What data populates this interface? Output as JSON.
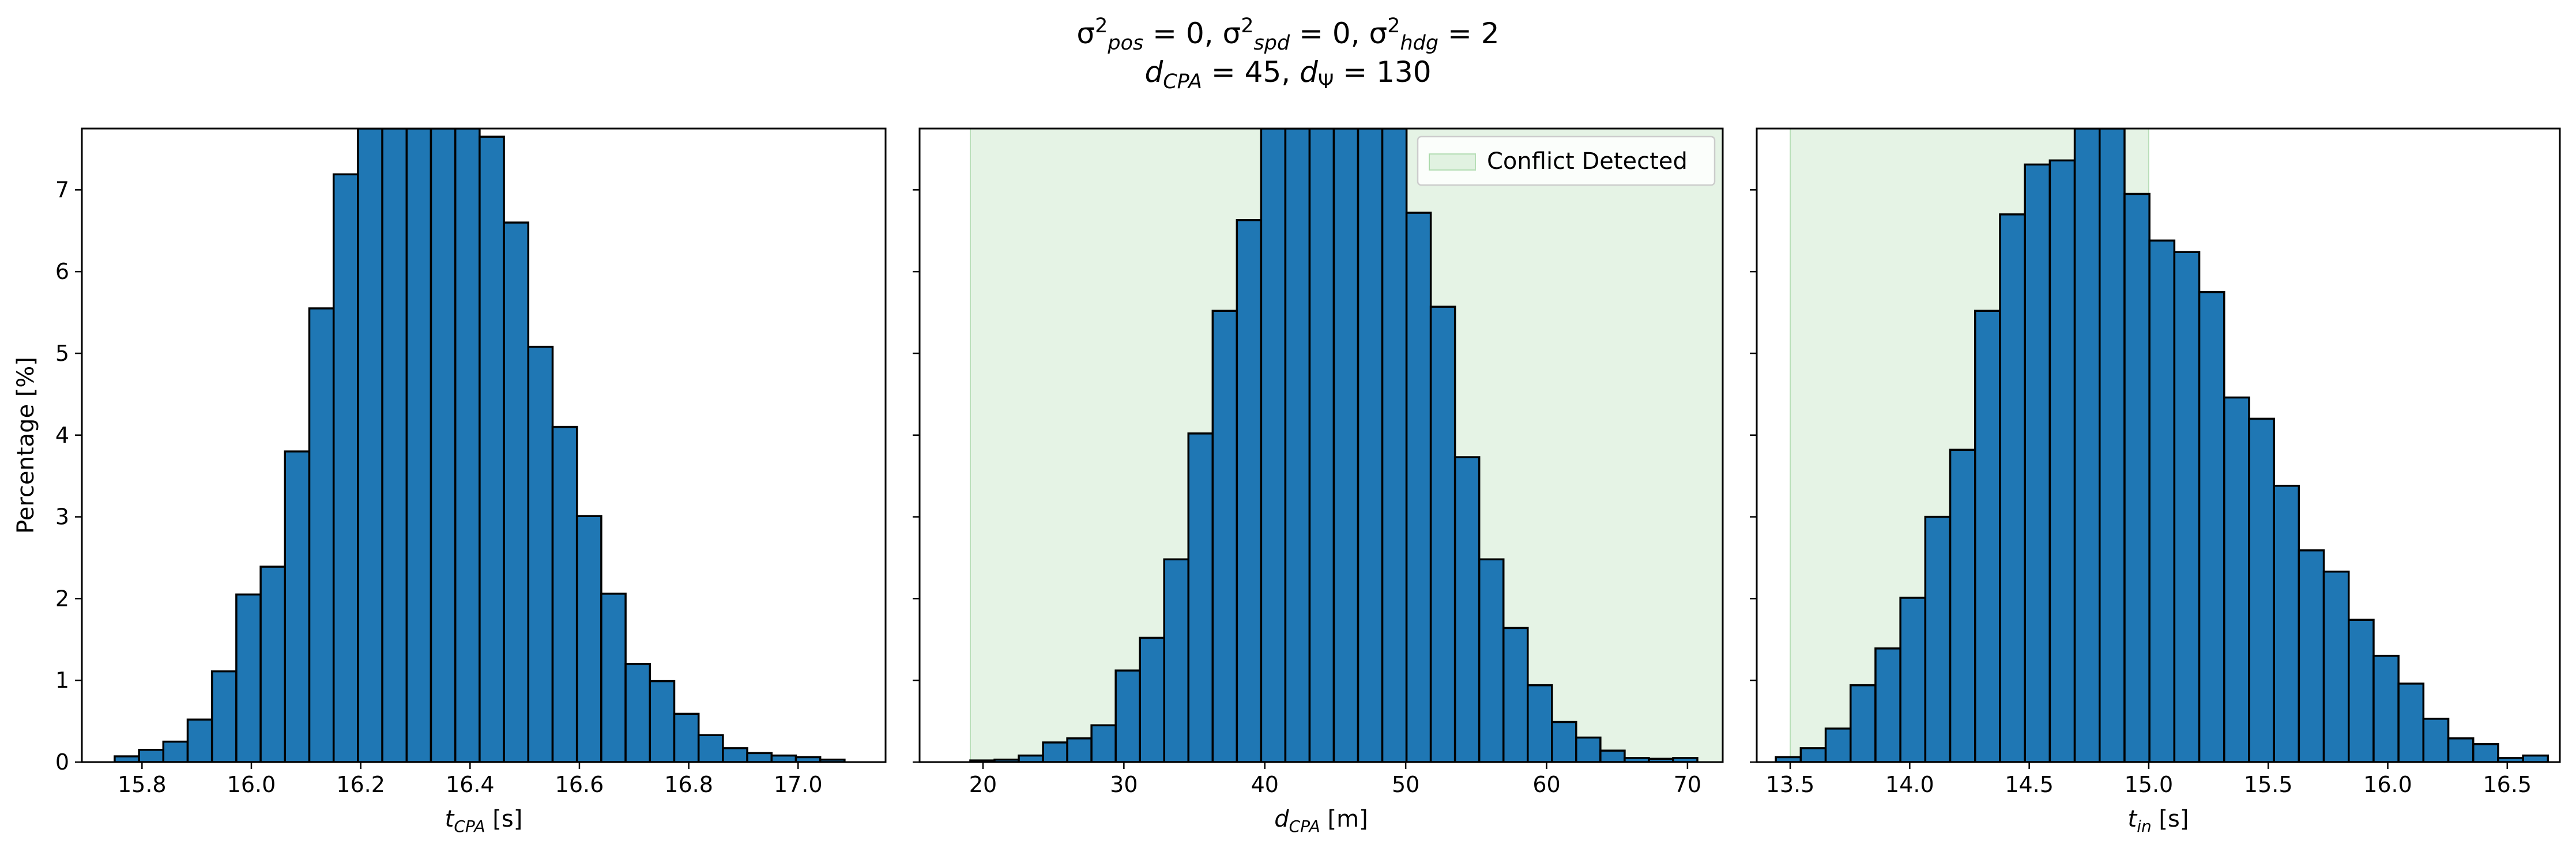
{
  "figure": {
    "title": {
      "line1": [
        {
          "t": "σ"
        },
        {
          "t": "2",
          "sup": true
        },
        {
          "t": "pos",
          "sub": true,
          "it": true
        },
        {
          "t": " = 0, "
        },
        {
          "t": "σ"
        },
        {
          "t": "2",
          "sup": true
        },
        {
          "t": "spd",
          "sub": true,
          "it": true
        },
        {
          "t": " = 0, "
        },
        {
          "t": "σ"
        },
        {
          "t": "2",
          "sup": true
        },
        {
          "t": "hdg",
          "sub": true,
          "it": true
        },
        {
          "t": " = 2"
        }
      ],
      "line2": [
        {
          "t": "d",
          "it": true
        },
        {
          "t": "CPA",
          "sub": true,
          "it": true
        },
        {
          "t": " = 45, "
        },
        {
          "t": "d",
          "it": true
        },
        {
          "t": "Ψ",
          "sub": true
        },
        {
          "t": " = 130"
        }
      ]
    }
  },
  "chart_data": [
    {
      "type": "bar",
      "subtype": "histogram",
      "id": "tcpa",
      "xlabel": [
        {
          "t": "t",
          "it": true
        },
        {
          "t": "CPA",
          "sub": true,
          "it": true
        },
        {
          "t": " [s]"
        }
      ],
      "ylabel": "Percentage [%]",
      "xlim": [
        15.69,
        17.16
      ],
      "ylim": [
        0,
        7.75
      ],
      "xticks": [
        15.8,
        16.0,
        16.2,
        16.4,
        16.6,
        16.8,
        17.0
      ],
      "xtick_labels": [
        "15.8",
        "16.0",
        "16.2",
        "16.4",
        "16.6",
        "16.8",
        "17.0"
      ],
      "yticks": [
        0,
        1,
        2,
        3,
        4,
        5,
        6,
        7
      ],
      "ytick_labels": [
        "0",
        "1",
        "2",
        "3",
        "4",
        "5",
        "6",
        "7"
      ],
      "show_ytick_labels": true,
      "bin_start": 15.75,
      "bin_width": 0.0445,
      "values": [
        0.07,
        0.15,
        0.25,
        0.52,
        1.11,
        2.05,
        2.39,
        3.8,
        5.55,
        7.19,
        7.75,
        7.75,
        7.75,
        7.75,
        7.75,
        7.65,
        6.6,
        5.08,
        4.1,
        3.01,
        2.06,
        1.2,
        0.99,
        0.59,
        0.33,
        0.17,
        0.11,
        0.08,
        0.06,
        0.03
      ]
    },
    {
      "type": "bar",
      "subtype": "histogram",
      "id": "dcpa",
      "xlabel": [
        {
          "t": "d",
          "it": true
        },
        {
          "t": "CPA",
          "sub": true,
          "it": true
        },
        {
          "t": " [m]"
        }
      ],
      "xlim": [
        15.5,
        72.5
      ],
      "ylim": [
        0,
        7.75
      ],
      "xticks": [
        20,
        30,
        40,
        50,
        60,
        70
      ],
      "xtick_labels": [
        "20",
        "30",
        "40",
        "50",
        "60",
        "70"
      ],
      "yticks": [
        0,
        1,
        2,
        3,
        4,
        5,
        6,
        7
      ],
      "show_ytick_labels": false,
      "region": {
        "x0": 19.1,
        "x1": 72.5,
        "color": "#2ca02c",
        "opacity": 0.12,
        "label": "Conflict Detected"
      },
      "legend": {
        "position": "upper right"
      },
      "bin_start": 19.1,
      "bin_width": 1.72,
      "values": [
        0.02,
        0.03,
        0.08,
        0.24,
        0.29,
        0.45,
        1.12,
        1.52,
        2.48,
        4.02,
        5.52,
        6.63,
        7.75,
        7.75,
        7.75,
        7.75,
        7.75,
        7.75,
        6.72,
        5.57,
        3.73,
        2.48,
        1.64,
        0.94,
        0.49,
        0.3,
        0.14,
        0.05,
        0.04,
        0.05
      ]
    },
    {
      "type": "bar",
      "subtype": "histogram",
      "id": "tin",
      "xlabel": [
        {
          "t": "t",
          "it": true
        },
        {
          "t": "in",
          "sub": true,
          "it": true
        },
        {
          "t": " [s]"
        }
      ],
      "xlim": [
        13.36,
        16.72
      ],
      "ylim": [
        0,
        7.75
      ],
      "xticks": [
        13.5,
        14.0,
        14.5,
        15.0,
        15.5,
        16.0,
        16.5
      ],
      "xtick_labels": [
        "13.5",
        "14.0",
        "14.5",
        "15.0",
        "15.5",
        "16.0",
        "16.5"
      ],
      "yticks": [
        0,
        1,
        2,
        3,
        4,
        5,
        6,
        7
      ],
      "show_ytick_labels": false,
      "region": {
        "x0": 13.5,
        "x1": 15.0,
        "color": "#2ca02c",
        "opacity": 0.12
      },
      "bin_start": 13.44,
      "bin_width": 0.1042,
      "values": [
        0.06,
        0.17,
        0.41,
        0.94,
        1.39,
        2.01,
        3.0,
        3.82,
        5.52,
        6.7,
        7.31,
        7.36,
        7.75,
        7.75,
        6.95,
        6.38,
        6.24,
        5.75,
        4.46,
        4.2,
        3.38,
        2.59,
        2.33,
        1.74,
        1.3,
        0.96,
        0.53,
        0.29,
        0.22,
        0.05,
        0.08
      ]
    }
  ]
}
